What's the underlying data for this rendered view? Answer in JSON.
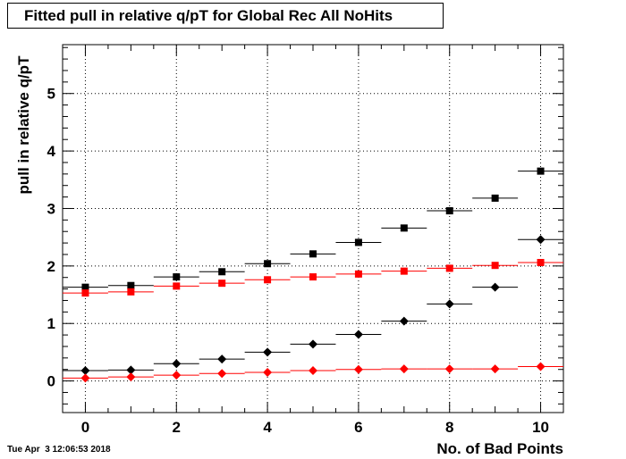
{
  "chart_data": {
    "type": "scatter",
    "title": "Fitted pull in relative q/pT for Global Rec All NoHits",
    "xlabel": "No. of Bad Points",
    "ylabel": "pull in relative q/pT",
    "xlim": [
      -0.5,
      10.5
    ],
    "ylim": [
      -0.55,
      5.85
    ],
    "x_ticks": [
      0,
      2,
      4,
      6,
      8,
      10
    ],
    "y_ticks": [
      0,
      1,
      2,
      3,
      4,
      5
    ],
    "grid": true,
    "x": [
      0,
      1,
      2,
      3,
      4,
      5,
      6,
      7,
      8,
      9,
      10
    ],
    "series": [
      {
        "marker": "square",
        "color": "#000000",
        "values": [
          1.63,
          1.66,
          1.81,
          1.9,
          2.04,
          2.21,
          2.41,
          2.66,
          2.96,
          3.18,
          3.65
        ]
      },
      {
        "marker": "square",
        "color": "#ff0000",
        "values": [
          1.53,
          1.55,
          1.65,
          1.7,
          1.76,
          1.81,
          1.86,
          1.91,
          1.96,
          2.01,
          2.06
        ]
      },
      {
        "marker": "diamond",
        "color": "#000000",
        "values": [
          0.18,
          0.19,
          0.3,
          0.38,
          0.5,
          0.64,
          0.81,
          1.04,
          1.34,
          1.63,
          2.46
        ]
      },
      {
        "marker": "diamond",
        "color": "#ff0000",
        "values": [
          0.05,
          0.07,
          0.1,
          0.13,
          0.15,
          0.18,
          0.2,
          0.21,
          0.21,
          0.21,
          0.25
        ]
      }
    ]
  },
  "footer": {
    "timestamp": "Tue Apr  3 12:06:53 2018"
  }
}
